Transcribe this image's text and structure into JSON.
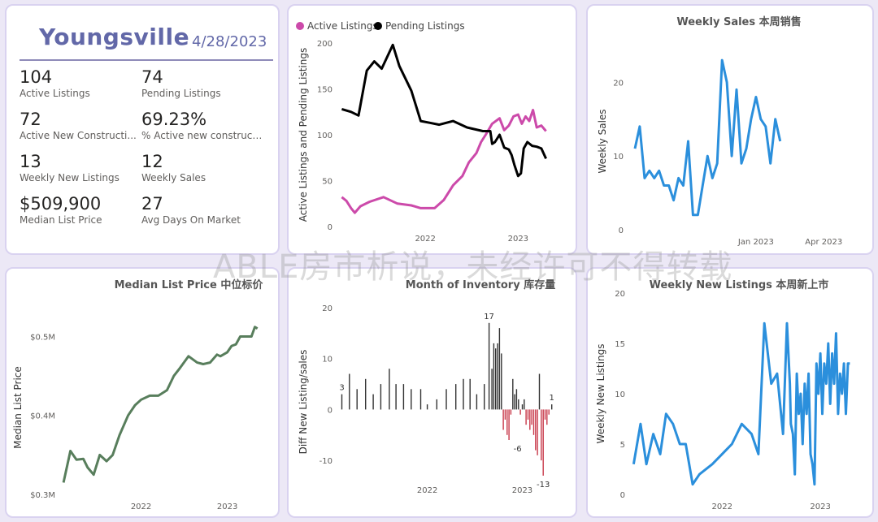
{
  "kpi_card": {
    "city": "Youngsville",
    "date": "4/28/2023",
    "items": [
      {
        "value": "104",
        "label": "Active Listings"
      },
      {
        "value": "74",
        "label": "Pending Listings"
      },
      {
        "value": "72",
        "label": "Active New Constructi..."
      },
      {
        "value": "69.23%",
        "label": "% Active new constructions"
      },
      {
        "value": "13",
        "label": "Weekly New Listings"
      },
      {
        "value": "12",
        "label": "Weekly Sales"
      },
      {
        "value": "$509,900",
        "label": "Median List Price"
      },
      {
        "value": "27",
        "label": "Avg Days On Market"
      }
    ]
  },
  "watermark": "ABLE房市析说，未经许可不得转载",
  "colors": {
    "active": "#cc4aaa",
    "pending": "#000000",
    "blue": "#2b8fdc",
    "green": "#587e5c",
    "neg": "#c8394a",
    "bar": "#333333",
    "axis_text": "#605e5c"
  },
  "chart_data": [
    {
      "type": "line",
      "title": "",
      "xlabel": "",
      "ylabel": "Active Listings and Pending Listings",
      "legend": "top-left",
      "ylim": [
        0,
        200
      ],
      "yticks": [
        0,
        50,
        100,
        150,
        200
      ],
      "xticks": [
        {
          "label": "2022",
          "t": 2022.0
        },
        {
          "label": "2023",
          "t": 2023.0
        }
      ],
      "xlim": [
        2021.07,
        2023.33
      ],
      "series": [
        {
          "name": "Active Listings",
          "color": "#cc4aaa",
          "x": [
            2021.1,
            2021.15,
            2021.2,
            2021.24,
            2021.3,
            2021.4,
            2021.55,
            2021.7,
            2021.85,
            2021.95,
            2022.1,
            2022.2,
            2022.3,
            2022.4,
            2022.47,
            2022.55,
            2022.6,
            2022.65,
            2022.72,
            2022.8,
            2022.85,
            2022.9,
            2022.95,
            2023.0,
            2023.04,
            2023.08,
            2023.12,
            2023.16,
            2023.2,
            2023.25,
            2023.3
          ],
          "y": [
            32,
            28,
            20,
            15,
            22,
            27,
            32,
            25,
            23,
            20,
            20,
            29,
            45,
            55,
            70,
            80,
            92,
            100,
            112,
            118,
            105,
            110,
            120,
            122,
            112,
            120,
            115,
            127,
            108,
            110,
            104
          ]
        },
        {
          "name": "Pending Listings",
          "color": "#000000",
          "x": [
            2021.1,
            2021.2,
            2021.28,
            2021.37,
            2021.45,
            2021.53,
            2021.65,
            2021.72,
            2021.85,
            2021.95,
            2022.05,
            2022.15,
            2022.3,
            2022.45,
            2022.62,
            2022.7,
            2022.72,
            2022.75,
            2022.8,
            2022.85,
            2022.9,
            2022.93,
            2022.96,
            2023.0,
            2023.03,
            2023.06,
            2023.1,
            2023.15,
            2023.2,
            2023.25,
            2023.3
          ],
          "y": [
            128,
            125,
            121,
            170,
            180,
            172,
            198,
            175,
            148,
            115,
            113,
            111,
            115,
            108,
            104,
            104,
            90,
            92,
            100,
            86,
            84,
            78,
            67,
            55,
            58,
            85,
            92,
            88,
            87,
            85,
            74
          ]
        }
      ]
    },
    {
      "type": "line",
      "title": "Weekly Sales 本周销售",
      "xlabel": "",
      "ylabel": "Weekly Sales",
      "ylim": [
        0,
        24
      ],
      "yticks": [
        0,
        10,
        20
      ],
      "xticks": [
        {
          "label": "Jan 2023",
          "t": 25
        },
        {
          "label": "Apr 2023",
          "t": 39
        }
      ],
      "xlim": [
        -1,
        45
      ],
      "series": [
        {
          "name": "",
          "color": "#2b8fdc",
          "x": [
            0,
            1,
            2,
            3,
            4,
            5,
            6,
            7,
            8,
            9,
            10,
            11,
            12,
            13,
            14,
            15,
            16,
            17,
            18,
            19,
            20,
            21,
            22,
            23,
            24,
            25,
            26,
            27,
            28,
            29,
            30,
            31,
            32,
            33,
            34,
            35,
            36,
            37,
            38,
            39,
            40,
            41,
            42,
            43,
            44
          ],
          "y": [
            11,
            14,
            7,
            8,
            7,
            8,
            6,
            6,
            4,
            7,
            6,
            12,
            2,
            2,
            6,
            10,
            7,
            9,
            23,
            20,
            10,
            19,
            9,
            11,
            15,
            18,
            15,
            14,
            9,
            15,
            12,
            null,
            null,
            null,
            null,
            null,
            null,
            null,
            null,
            null,
            null,
            null,
            null,
            null,
            null
          ]
        }
      ]
    },
    {
      "type": "line",
      "title": "Median List Price 中位标价",
      "xlabel": "",
      "ylabel": "Median List Price",
      "ylim": [
        0.3,
        0.52
      ],
      "yticks": [
        {
          "label": "$0.3M",
          "v": 0.3
        },
        {
          "label": "$0.4M",
          "v": 0.4
        },
        {
          "label": "$0.5M",
          "v": 0.5
        }
      ],
      "xticks": [
        {
          "label": "2022",
          "t": 2022.0
        },
        {
          "label": "2023",
          "t": 2023.0
        }
      ],
      "xlim": [
        2021.08,
        2023.4
      ],
      "series": [
        {
          "name": "",
          "color": "#587e5c",
          "x": [
            2021.1,
            2021.18,
            2021.25,
            2021.33,
            2021.38,
            2021.45,
            2021.52,
            2021.6,
            2021.67,
            2021.75,
            2021.85,
            2021.93,
            2022.0,
            2022.1,
            2022.2,
            2022.3,
            2022.38,
            2022.45,
            2022.55,
            2022.65,
            2022.72,
            2022.8,
            2022.88,
            2022.92,
            2023.0,
            2023.05,
            2023.1,
            2023.15,
            2023.22,
            2023.28,
            2023.32,
            2023.35
          ],
          "y": [
            0.315,
            0.355,
            0.344,
            0.345,
            0.334,
            0.325,
            0.35,
            0.342,
            0.35,
            0.375,
            0.4,
            0.413,
            0.42,
            0.425,
            0.425,
            0.432,
            0.45,
            0.46,
            0.475,
            0.467,
            0.465,
            0.467,
            0.477,
            0.475,
            0.48,
            0.488,
            0.49,
            0.5,
            0.5,
            0.5,
            0.512,
            0.51
          ]
        }
      ]
    },
    {
      "type": "bar",
      "title": "Month of Inventory 库存量",
      "xlabel": "",
      "ylabel": "Diff New Listing/sales",
      "ylim": [
        -17,
        20
      ],
      "yticks": [
        -10,
        0,
        10,
        20
      ],
      "xticks": [
        {
          "label": "2022",
          "t": 2022.0
        },
        {
          "label": "2023",
          "t": 2023.0
        }
      ],
      "xlim": [
        2021.07,
        2023.33
      ],
      "data_labels": [
        {
          "label": "3",
          "t": 2021.1,
          "v": 3
        },
        {
          "label": "17",
          "t": 2022.65,
          "v": 17
        },
        {
          "label": "-6",
          "t": 2022.95,
          "v": -6
        },
        {
          "label": "-13",
          "t": 2023.22,
          "v": -13
        },
        {
          "label": "1",
          "t": 2023.31,
          "v": 1
        }
      ],
      "series": [
        {
          "name": "Diff New Listing/sales",
          "t": [
            2021.1,
            2021.18,
            2021.26,
            2021.35,
            2021.43,
            2021.51,
            2021.6,
            2021.67,
            2021.75,
            2021.83,
            2021.93,
            2022.0,
            2022.1,
            2022.2,
            2022.3,
            2022.38,
            2022.45,
            2022.52,
            2022.6,
            2022.65,
            2022.68,
            2022.7,
            2022.72,
            2022.74,
            2022.76,
            2022.78,
            2022.8,
            2022.82,
            2022.84,
            2022.86,
            2022.88,
            2022.9,
            2022.92,
            2022.94,
            2022.96,
            2022.98,
            2023.0,
            2023.02,
            2023.04,
            2023.06,
            2023.08,
            2023.1,
            2023.12,
            2023.14,
            2023.16,
            2023.18,
            2023.2,
            2023.22,
            2023.24,
            2023.26,
            2023.28,
            2023.31
          ],
          "values": [
            3,
            7,
            4,
            6,
            3,
            5,
            8,
            5,
            5,
            4,
            4,
            1,
            2,
            4,
            5,
            6,
            6,
            3,
            5,
            17,
            8,
            13,
            12,
            13,
            16,
            11,
            -4,
            -2,
            -5,
            -6,
            -1,
            6,
            3,
            4,
            2,
            -1,
            1,
            2,
            -3,
            -2,
            -4,
            -3,
            -5,
            -8,
            -9,
            7,
            -10,
            -13,
            -2,
            -3,
            -1,
            1
          ]
        }
      ]
    },
    {
      "type": "line",
      "title": "Weekly New Listings 本周新上市",
      "xlabel": "",
      "ylabel": "Weekly New Listings",
      "ylim": [
        0,
        20
      ],
      "yticks": [
        0,
        5,
        10,
        15,
        20
      ],
      "xticks": [
        {
          "label": "2022",
          "t": 2022.0
        },
        {
          "label": "2023",
          "t": 2023.0
        }
      ],
      "xlim": [
        2021.08,
        2023.33
      ],
      "series": [
        {
          "name": "",
          "color": "#2b8fdc",
          "x": [
            2021.1,
            2021.17,
            2021.23,
            2021.3,
            2021.37,
            2021.43,
            2021.5,
            2021.57,
            2021.63,
            2021.7,
            2021.77,
            2021.9,
            2022.0,
            2022.1,
            2022.2,
            2022.3,
            2022.37,
            2022.43,
            2022.5,
            2022.56,
            2022.62,
            2022.66,
            2022.69,
            2022.7,
            2022.72,
            2022.74,
            2022.76,
            2022.78,
            2022.8,
            2022.82,
            2022.84,
            2022.86,
            2022.88,
            2022.9,
            2022.92,
            2022.94,
            2022.96,
            2022.98,
            2023.0,
            2023.02,
            2023.04,
            2023.06,
            2023.08,
            2023.1,
            2023.12,
            2023.14,
            2023.16,
            2023.18,
            2023.2,
            2023.22,
            2023.24,
            2023.26,
            2023.28,
            2023.3
          ],
          "y": [
            3,
            7,
            3,
            6,
            4,
            8,
            7,
            5,
            5,
            1,
            2,
            3,
            4,
            5,
            7,
            6,
            4,
            17,
            11,
            12,
            6,
            17,
            11,
            7,
            6,
            2,
            12,
            8,
            10,
            5,
            11,
            8,
            12,
            4,
            3,
            1,
            13,
            10,
            14,
            8,
            13,
            11,
            15,
            9,
            14,
            11,
            16,
            8,
            12,
            10,
            13,
            8,
            13,
            13
          ]
        }
      ]
    }
  ]
}
